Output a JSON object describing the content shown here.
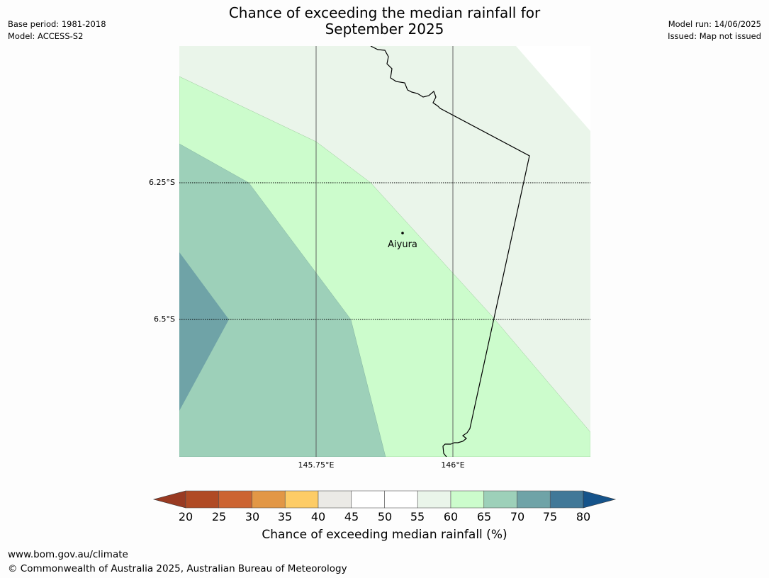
{
  "title_line1": "Chance of exceeding the median rainfall for",
  "title_line2": "September 2025",
  "meta_left": {
    "base_period": "Base period: 1981-2018",
    "model": "Model: ACCESS-S2"
  },
  "meta_right": {
    "model_run": "Model run: 14/06/2025",
    "issued": "Issued: Map not issued"
  },
  "map": {
    "lat_labels": [
      "6.25°S",
      "6.5°S"
    ],
    "lon_labels": [
      "145.75°E",
      "146°E"
    ],
    "place": {
      "name": "Aiyura"
    }
  },
  "colorbar": {
    "ticks": [
      "20",
      "25",
      "30",
      "35",
      "40",
      "45",
      "50",
      "55",
      "60",
      "65",
      "70",
      "75",
      "80"
    ],
    "colors": [
      "#b04a24",
      "#cc6432",
      "#e29746",
      "#fdcc66",
      "#ebeae6",
      "#ffffff",
      "#ffffff",
      "#eaf5ea",
      "#ccfccc",
      "#9dd0b9",
      "#6fa3a7",
      "#417898"
    ],
    "under_color": "#993a22",
    "over_color": "#15538a",
    "title": "Chance of exceeding median rainfall (%)"
  },
  "footer": {
    "url": "www.bom.gov.au/climate",
    "copyright": "© Commonwealth of Australia 2025, Australian Bureau of Meteorology"
  }
}
